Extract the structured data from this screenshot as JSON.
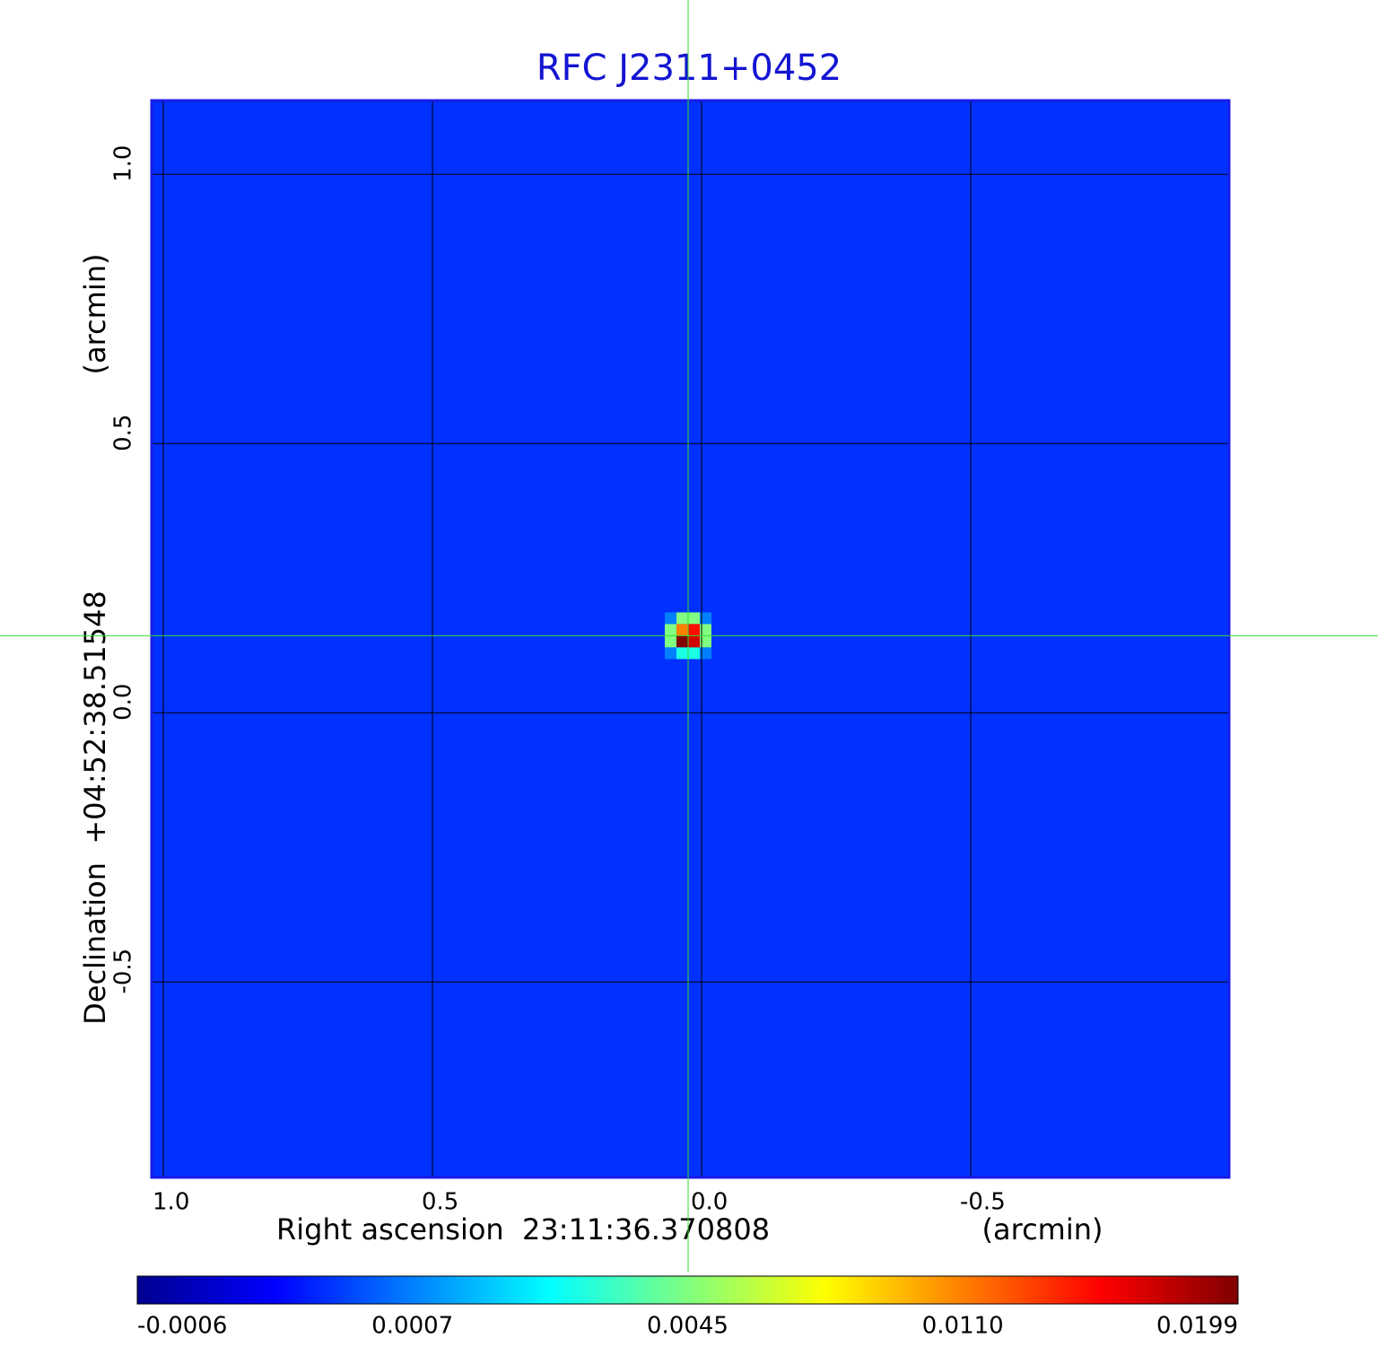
{
  "chart_data": {
    "type": "image",
    "title": "RFC J2311+0452",
    "xlabel": "Right ascension  23:11:36.370808",
    "xunit": "(arcmin)",
    "ylabel": "Declination  +04:52:38.51548",
    "yunit": "(arcmin)",
    "xlim": [
      1.0217,
      -0.98
    ],
    "ylim": [
      -0.863,
      1.137
    ],
    "xticks": [
      {
        "value": 1,
        "label": "1.0"
      },
      0.5,
      {
        "value": 0,
        "label": "0.0"
      },
      -0.5
    ],
    "yticks": [
      {
        "value": 1,
        "label": "1.0"
      },
      0.5,
      {
        "value": 0,
        "label": "0.0"
      },
      -0.5
    ],
    "grid": true,
    "background": 0.0003,
    "source": {
      "x": 0.025,
      "y": 0.143,
      "pixels": [
        [
          0.0007,
          0.0045,
          0.0045,
          0.0007
        ],
        [
          0.0045,
          0.011,
          0.015,
          0.0045
        ],
        [
          0.0045,
          0.0199,
          0.017,
          0.0045
        ],
        [
          0.0007,
          0.003,
          0.003,
          0.0007
        ]
      ]
    },
    "colorbar": {
      "ticks": [
        -0.0006,
        0.0007,
        0.0045,
        {
          "value": 0.011,
          "label": "0.0110"
        },
        0.0199
      ]
    }
  }
}
